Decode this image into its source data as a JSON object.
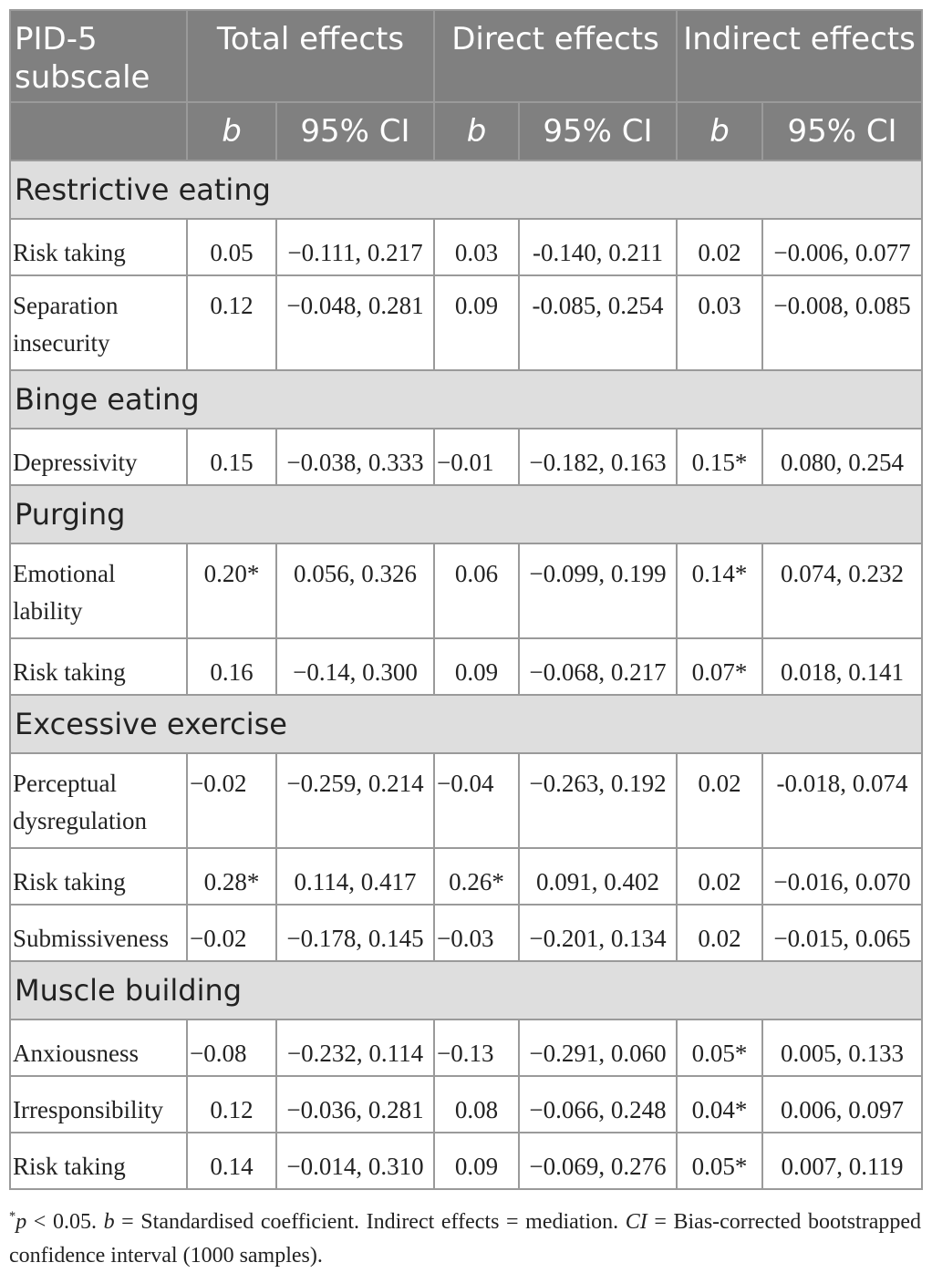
{
  "header": {
    "col0": "PID-5 subscale",
    "groups": [
      "Total effects",
      "Direct effects",
      "Indirect effects"
    ],
    "sub_b": "b",
    "sub_ci": "95% CI"
  },
  "sections": [
    {
      "title": "Restrictive eating",
      "rows": [
        {
          "label": "Risk taking",
          "tb": "0.05",
          "tci": "−0.111, 0.217",
          "db": "0.03",
          "dci": "-0.140, 0.211",
          "ib": "0.02",
          "ici": "−0.006, 0.077"
        },
        {
          "label": "Separation insecurity",
          "tb": "0.12",
          "tci": "−0.048, 0.281",
          "db": "0.09",
          "dci": "-0.085, 0.254",
          "ib": "0.03",
          "ici": "−0.008, 0.085"
        }
      ]
    },
    {
      "title": "Binge eating",
      "rows": [
        {
          "label": "Depressivity",
          "tb": "0.15",
          "tci": "−0.038, 0.333",
          "db": "−0.01",
          "dci": "−0.182, 0.163",
          "ib": "0.15*",
          "ici": "0.080, 0.254"
        }
      ]
    },
    {
      "title": "Purging",
      "rows": [
        {
          "label": "Emotional lability",
          "tb": "0.20*",
          "tci": "0.056, 0.326",
          "db": "0.06",
          "dci": "−0.099, 0.199",
          "ib": "0.14*",
          "ici": "0.074, 0.232"
        },
        {
          "label": "Risk taking",
          "tb": "0.16",
          "tci": "−0.14, 0.300",
          "db": "0.09",
          "dci": "−0.068, 0.217",
          "ib": "0.07*",
          "ici": "0.018, 0.141"
        }
      ]
    },
    {
      "title": "Excessive exercise",
      "rows": [
        {
          "label": "Perceptual dysregulation",
          "tb": "−0.02",
          "tci": "−0.259, 0.214",
          "db": "−0.04",
          "dci": "−0.263, 0.192",
          "ib": "0.02",
          "ici": "-0.018, 0.074"
        },
        {
          "label": "Risk taking",
          "tb": "0.28*",
          "tci": "0.114, 0.417",
          "db": "0.26*",
          "dci": "0.091, 0.402",
          "ib": "0.02",
          "ici": "−0.016, 0.070"
        },
        {
          "label": "Submissiveness",
          "tb": "−0.02",
          "tci": "−0.178, 0.145",
          "db": "−0.03",
          "dci": "−0.201, 0.134",
          "ib": "0.02",
          "ici": "−0.015, 0.065"
        }
      ]
    },
    {
      "title": "Muscle building",
      "rows": [
        {
          "label": "Anxiousness",
          "tb": "−0.08",
          "tci": "−0.232, 0.114",
          "db": "−0.13",
          "dci": "−0.291, 0.060",
          "ib": "0.05*",
          "ici": "0.005, 0.133"
        },
        {
          "label": "Irresponsibility",
          "tb": "0.12",
          "tci": "−0.036, 0.281",
          "db": "0.08",
          "dci": "−0.066, 0.248",
          "ib": "0.04*",
          "ici": "0.006, 0.097"
        },
        {
          "label": "Risk taking",
          "tb": "0.14",
          "tci": "−0.014, 0.310",
          "db": "0.09",
          "dci": "−0.069, 0.276",
          "ib": "0.05*",
          "ici": "0.007, 0.119"
        }
      ]
    }
  ],
  "footnote": {
    "star": "*",
    "p": "p",
    "text1": " < 0.05. ",
    "b": "b",
    "text2": " = Standardised coefficient. Indirect effects = mediation. ",
    "ci": "CI",
    "text3": " = Bias-corrected bootstrapped confidence interval (1000 samples)."
  }
}
